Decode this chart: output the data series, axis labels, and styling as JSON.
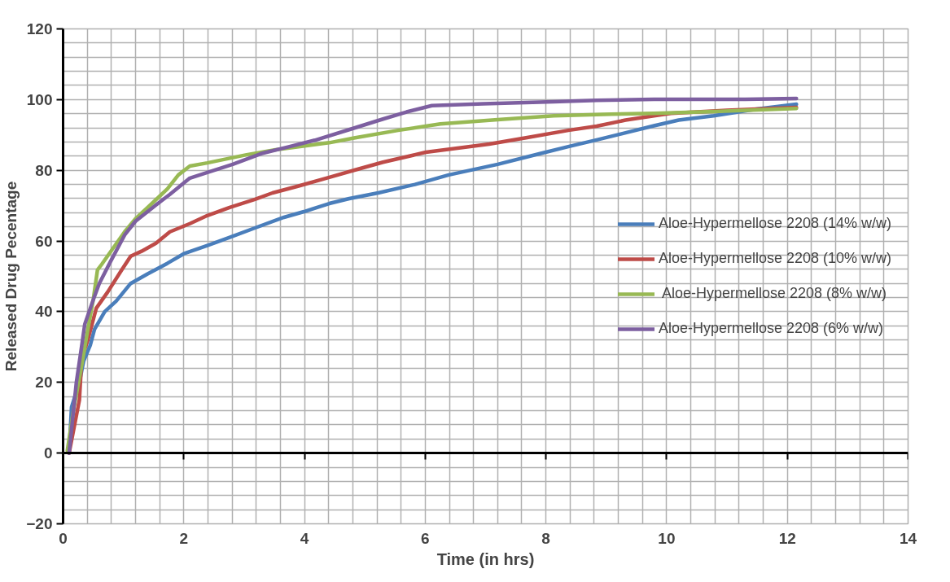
{
  "chart_data": {
    "type": "line",
    "xlabel": "Time (in hrs)",
    "ylabel": "Released Drug Pecentage",
    "xlim": [
      0,
      14
    ],
    "xticks": [
      0,
      2,
      4,
      6,
      8,
      10,
      12,
      14
    ],
    "ylim": [
      -20,
      120
    ],
    "yticks": [
      -20,
      0,
      20,
      40,
      60,
      80,
      100,
      120
    ],
    "grid": true,
    "legend": "right",
    "marker": "none",
    "line_style": "solid",
    "series": [
      {
        "name": "Aloe-Hypermellose 2208 (14% w/w)",
        "color": "#4a7ebb",
        "x": [
          0.1,
          0.14,
          0.27,
          0.34,
          0.45,
          0.52,
          0.69,
          0.88,
          1.12,
          1.4,
          1.73,
          2.0,
          2.39,
          2.76,
          3.18,
          3.66,
          3.99,
          4.41,
          4.74,
          5.22,
          5.83,
          6.39,
          7.2,
          7.9,
          8.37,
          8.84,
          9.32,
          9.79,
          10.2,
          10.78,
          11.49,
          12.15
        ],
        "values": [
          0,
          13,
          20,
          26,
          30.5,
          35,
          40,
          43,
          48,
          50.7,
          53.7,
          56.4,
          58.7,
          61,
          63.7,
          66.7,
          68.3,
          70.6,
          72,
          73.6,
          76,
          78.7,
          81.7,
          84.7,
          86.7,
          88.6,
          90.6,
          92.6,
          94.2,
          95.4,
          97.3,
          98.7
        ]
      },
      {
        "name": "Aloe-Hypermellose 2208 (10% w/w)",
        "color": "#be4b48",
        "x": [
          0.1,
          0.27,
          0.31,
          0.41,
          0.55,
          0.74,
          0.97,
          1.12,
          1.3,
          1.54,
          1.77,
          2.1,
          2.39,
          2.76,
          3.18,
          3.47,
          3.89,
          4.41,
          4.84,
          5.3,
          6.01,
          7.06,
          7.67,
          8.37,
          8.84,
          9.32,
          9.79,
          10.07,
          11.0,
          12.15
        ],
        "values": [
          0,
          15,
          27,
          32,
          41,
          45.6,
          51.8,
          55.7,
          57.1,
          59.4,
          62.6,
          64.9,
          67.2,
          69.5,
          71.8,
          73.6,
          75.5,
          78,
          80.1,
          82.3,
          85.1,
          87.4,
          89.2,
          91.3,
          92.5,
          94.2,
          95.4,
          96.1,
          97,
          97.8
        ]
      },
      {
        "name": " Aloe-Hypermellose 2208 (8% w/w)",
        "color": "#98b954",
        "x": [
          0.07,
          0.17,
          0.31,
          0.41,
          0.5,
          0.57,
          0.64,
          0.83,
          1.02,
          1.2,
          1.49,
          1.73,
          1.91,
          2.1,
          2.39,
          3.04,
          3.52,
          4.41,
          4.84,
          5.55,
          6.25,
          7.2,
          8.13,
          9.08,
          9.79,
          10.78,
          12.15
        ],
        "values": [
          0.7,
          12,
          25,
          35,
          43.4,
          51.8,
          53.4,
          58,
          62.6,
          66.3,
          70.9,
          74.8,
          78.7,
          81.2,
          82.1,
          84.4,
          85.8,
          87.8,
          89.2,
          91.3,
          93.1,
          94.3,
          95.4,
          95.9,
          96.1,
          96.6,
          97.5
        ]
      },
      {
        "name": "Aloe-Hypermellose 2208 (6% w/w)",
        "color": "#7d5fa0",
        "x": [
          0.1,
          0.22,
          0.31,
          0.36,
          0.5,
          0.6,
          0.78,
          1.02,
          1.2,
          1.54,
          1.77,
          2.1,
          2.39,
          2.81,
          3.28,
          3.75,
          4.17,
          4.74,
          5.3,
          5.69,
          6.11,
          6.96,
          8.13,
          8.84,
          9.79,
          10.5,
          11.3,
          12.15
        ],
        "values": [
          0,
          20,
          30.5,
          36.5,
          43.4,
          48,
          54,
          61.7,
          65.6,
          70.2,
          73.2,
          77.8,
          79.4,
          81.7,
          84.7,
          86.7,
          88.5,
          91.5,
          94.5,
          96.5,
          98.3,
          98.8,
          99.4,
          99.8,
          100.1,
          100.1,
          100.1,
          100.3
        ]
      }
    ]
  }
}
